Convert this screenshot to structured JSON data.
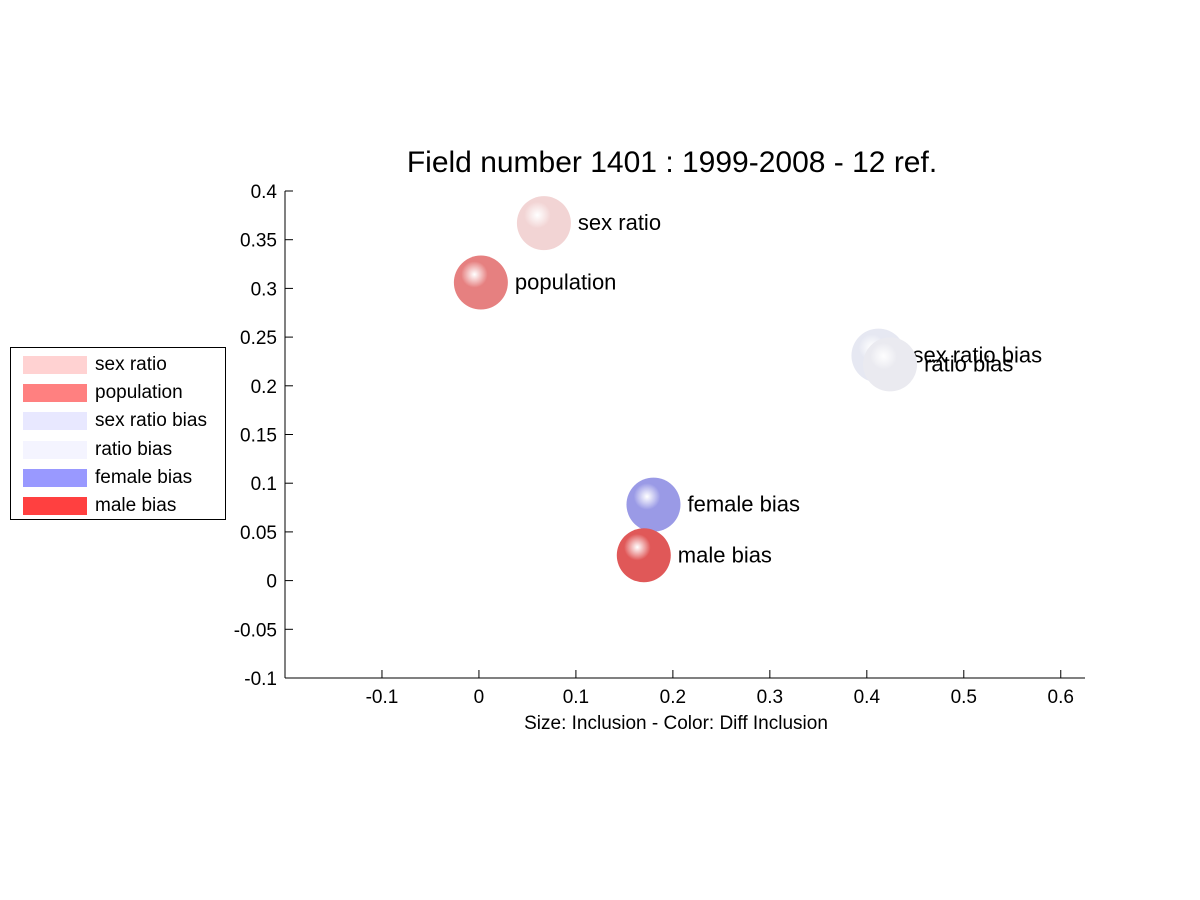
{
  "chart_data": {
    "type": "scatter",
    "title": "Field number 1401 : 1999-2008  - 12 ref.",
    "xlabel": "Size: Inclusion - Color: Diff Inclusion",
    "ylabel": "",
    "xlim": [
      -0.2,
      0.625
    ],
    "ylim": [
      -0.1,
      0.4
    ],
    "xticks": [
      -0.1,
      0,
      0.1,
      0.2,
      0.3,
      0.4,
      0.5,
      0.6
    ],
    "xtick_labels": [
      "-0.1",
      "0",
      "0.1",
      "0.2",
      "0.3",
      "0.4",
      "0.5",
      "0.6"
    ],
    "yticks": [
      -0.1,
      -0.05,
      0,
      0.05,
      0.1,
      0.15,
      0.2,
      0.25,
      0.3,
      0.35,
      0.4
    ],
    "ytick_labels": [
      "-0.1",
      "-0.05",
      "0",
      "0.05",
      "0.1",
      "0.15",
      "0.2",
      "0.25",
      "0.3",
      "0.35",
      "0.4"
    ],
    "grid": false,
    "legend_position": "outside-left",
    "points": [
      {
        "label": "sex ratio",
        "x": 0.067,
        "y": 0.367,
        "color": "#f2d4d4",
        "legend_color": "#ffd2d2"
      },
      {
        "label": "population",
        "x": 0.002,
        "y": 0.306,
        "color": "#e68080",
        "legend_color": "#ff8080"
      },
      {
        "label": "sex ratio bias",
        "x": 0.412,
        "y": 0.231,
        "color": "#e6e8f2",
        "legend_color": "#e8e8ff"
      },
      {
        "label": "ratio bias",
        "x": 0.424,
        "y": 0.222,
        "color": "#eaeaf0",
        "legend_color": "#f4f4ff"
      },
      {
        "label": "female bias",
        "x": 0.18,
        "y": 0.078,
        "color": "#9a9ae6",
        "legend_color": "#9999ff"
      },
      {
        "label": "male bias",
        "x": 0.17,
        "y": 0.026,
        "color": "#e05858",
        "legend_color": "#ff4040"
      }
    ]
  }
}
